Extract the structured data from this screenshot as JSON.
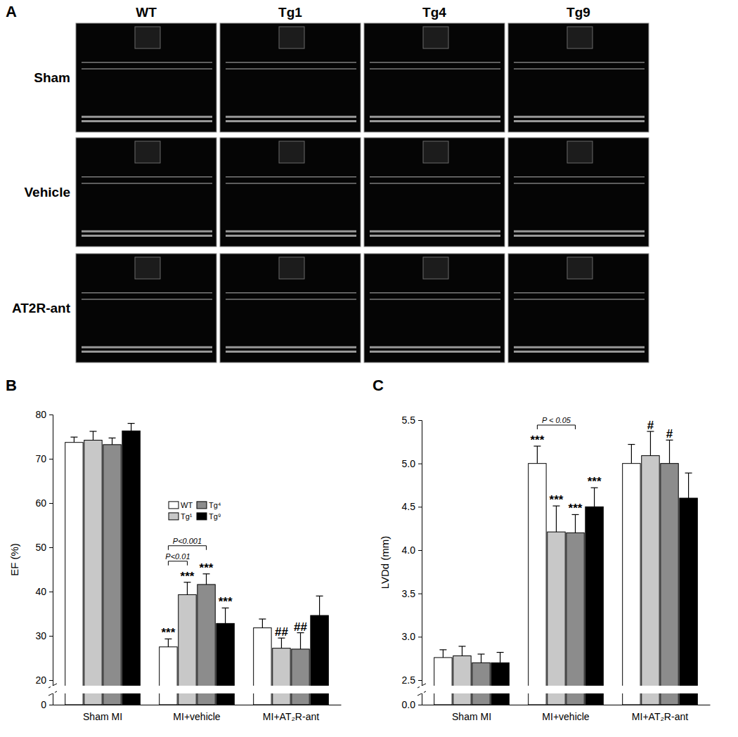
{
  "panel_a": {
    "label": "A",
    "columns": [
      "WT",
      "Tg1",
      "Tg4",
      "Tg9"
    ],
    "rows": [
      "Sham",
      "Vehicle",
      "AT2R-ant"
    ]
  },
  "chart_data": [
    {
      "type": "bar",
      "panel_label": "B",
      "ylabel": "EF (%)",
      "categories": [
        "Sham MI",
        "MI+vehicle",
        "MI+AT₂R-ant"
      ],
      "series": [
        {
          "name": "WT",
          "color": "#ffffff",
          "values": [
            73.7,
            27.5,
            31.8
          ],
          "errors": [
            1.2,
            1.8,
            2.0
          ]
        },
        {
          "name": "Tg¹",
          "color": "#c8c8c8",
          "values": [
            74.2,
            39.3,
            27.2
          ],
          "errors": [
            2.0,
            2.8,
            2.3
          ]
        },
        {
          "name": "Tg⁴",
          "color": "#8c8c8c",
          "values": [
            73.2,
            41.6,
            27.0
          ],
          "errors": [
            1.5,
            2.4,
            3.7
          ]
        },
        {
          "name": "Tg⁹",
          "color": "#000000",
          "values": [
            76.3,
            32.8,
            34.6
          ],
          "errors": [
            1.7,
            3.5,
            4.4
          ]
        }
      ],
      "ylim": [
        0,
        80
      ],
      "yticks": [
        0,
        20,
        30,
        40,
        50,
        60,
        70,
        80
      ],
      "grid": false,
      "legend": "upper center",
      "annotations": [
        {
          "text": "***",
          "category": 1,
          "series": 0
        },
        {
          "text": "***",
          "category": 1,
          "series": 1
        },
        {
          "text": "***",
          "category": 1,
          "series": 2
        },
        {
          "text": "***",
          "category": 1,
          "series": 3
        },
        {
          "text": "##",
          "category": 2,
          "series": 1
        },
        {
          "text": "##",
          "category": 2,
          "series": 2
        }
      ],
      "comparisons": [
        {
          "text": "P<0.01",
          "category": 1,
          "from": 0,
          "to": 1
        },
        {
          "text": "P<0.001",
          "category": 1,
          "from": 0,
          "to": 2
        }
      ]
    },
    {
      "type": "bar",
      "panel_label": "C",
      "ylabel": "LVDd (mm)",
      "categories": [
        "Sham MI",
        "MI+vehicle",
        "MI+AT₂R-ant"
      ],
      "series": [
        {
          "color": "#ffffff",
          "values": [
            2.76,
            5.0,
            5.0
          ],
          "errors": [
            0.09,
            0.2,
            0.22
          ]
        },
        {
          "color": "#c8c8c8",
          "values": [
            2.78,
            4.21,
            5.09
          ],
          "errors": [
            0.11,
            0.3,
            0.28
          ]
        },
        {
          "color": "#8c8c8c",
          "values": [
            2.7,
            4.2,
            5.0
          ],
          "errors": [
            0.1,
            0.21,
            0.27
          ]
        },
        {
          "color": "#000000",
          "values": [
            2.7,
            4.5,
            4.6
          ],
          "errors": [
            0.12,
            0.22,
            0.29
          ]
        }
      ],
      "ylim": [
        0,
        5.5
      ],
      "yticks": [
        {
          "value": 0,
          "label": "0.0"
        },
        {
          "value": 2.5,
          "label": "2.5"
        },
        {
          "value": 3,
          "label": "3.0"
        },
        {
          "value": 3.5,
          "label": "3.5"
        },
        {
          "value": 4,
          "label": "4.0"
        },
        {
          "value": 4.5,
          "label": "4.5"
        },
        {
          "value": 5,
          "label": "5.0"
        },
        {
          "value": 5.5,
          "label": "5.5"
        }
      ],
      "grid": false,
      "annotations": [
        {
          "text": "***",
          "category": 1,
          "series": 0
        },
        {
          "text": "***",
          "category": 1,
          "series": 1
        },
        {
          "text": "***",
          "category": 1,
          "series": 2
        },
        {
          "text": "***",
          "category": 1,
          "series": 3
        },
        {
          "text": "#",
          "category": 2,
          "series": 1
        },
        {
          "text": "#",
          "category": 2,
          "series": 2
        }
      ],
      "comparisons": [
        {
          "text": "P < 0.05",
          "category": 1,
          "from": 0,
          "to": 2
        }
      ]
    }
  ]
}
